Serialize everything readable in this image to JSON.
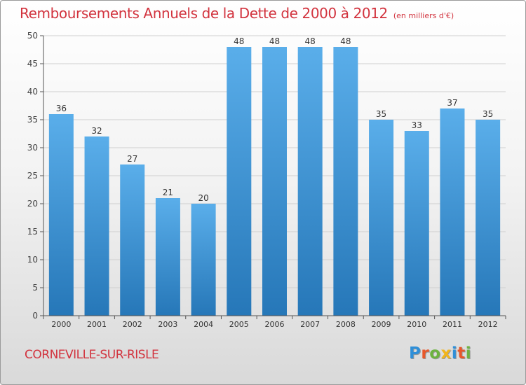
{
  "title": "Remboursements Annuels de la Dette de 2000 à 2012",
  "subtitle": "(en milliers d'€)",
  "commune": "CORNEVILLE-SUR-RISLE",
  "logo": {
    "letters": [
      "P",
      "r",
      "o",
      "x",
      "i",
      "t",
      "i"
    ],
    "colors": [
      "#2f8fd8",
      "#e8572a",
      "#6cb33f",
      "#f2b51c",
      "#2f8fd8",
      "#e8572a",
      "#6cb33f"
    ]
  },
  "colors": {
    "bar_top": "#5aaeea",
    "bar_bottom": "#2677b8",
    "axis": "#555555",
    "grid": "#cfcfcf",
    "title": "#d2333e"
  },
  "chart_data": {
    "type": "bar",
    "categories": [
      "2000",
      "2001",
      "2002",
      "2003",
      "2004",
      "2005",
      "2006",
      "2007",
      "2008",
      "2009",
      "2010",
      "2011",
      "2012"
    ],
    "values": [
      36,
      32,
      27,
      21,
      20,
      48,
      48,
      48,
      48,
      35,
      33,
      37,
      35
    ],
    "ylim": [
      0,
      50
    ],
    "yticks": [
      0,
      5,
      10,
      15,
      20,
      25,
      30,
      35,
      40,
      45,
      50
    ],
    "grid": true,
    "data_labels": true
  }
}
